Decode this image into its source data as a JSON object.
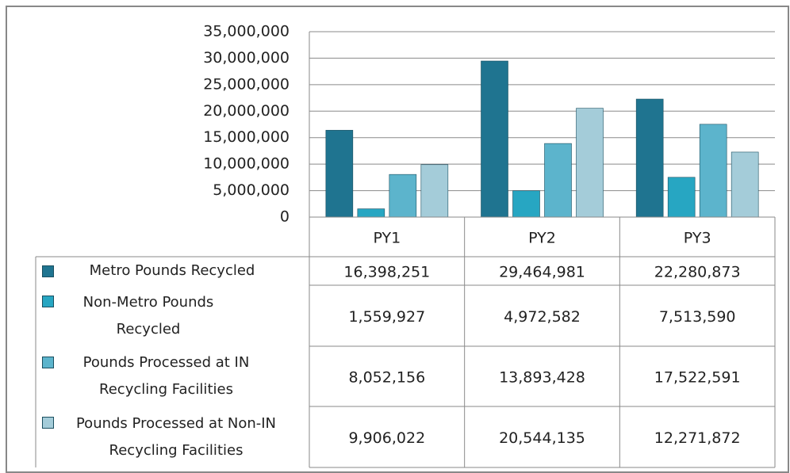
{
  "chart_data": {
    "type": "bar",
    "categories": [
      "PY1",
      "PY2",
      "PY3"
    ],
    "series": [
      {
        "name": "Metro Pounds Recycled",
        "color": "#1f7490",
        "values": [
          16398251,
          29464981,
          22280873
        ],
        "value_labels": [
          "16,398,251",
          "29,464,981",
          "22,280,873"
        ]
      },
      {
        "name": "Non-Metro Pounds Recycled",
        "color": "#27a6c2",
        "values": [
          1559927,
          4972582,
          7513590
        ],
        "value_labels": [
          "1,559,927",
          "4,972,582",
          "7,513,590"
        ]
      },
      {
        "name": "Pounds Processed at IN Recycling Facilities",
        "color": "#5cb4cc",
        "values": [
          8052156,
          13893428,
          17522591
        ],
        "value_labels": [
          "8,052,156",
          "13,893,428",
          "17,522,591"
        ]
      },
      {
        "name": "Pounds Processed at Non-IN Recycling Facilities",
        "color": "#a4ccd9",
        "values": [
          9906022,
          20544135,
          12271872
        ],
        "value_labels": [
          "9,906,022",
          "20,544,135",
          "12,271,872"
        ]
      }
    ],
    "ylim": [
      0,
      35000000
    ],
    "yticks": [
      0,
      {
        "value": 5000000,
        "label": "5,000,000"
      },
      {
        "value": 10000000,
        "label": "10,000,000"
      },
      {
        "value": 15000000,
        "label": "15,000,000"
      },
      {
        "value": 20000000,
        "label": "20,000,000"
      },
      {
        "value": 25000000,
        "label": "25,000,000"
      },
      {
        "value": 30000000,
        "label": "30,000,000"
      },
      {
        "value": 35000000,
        "label": "35,000,000"
      }
    ],
    "grid": true
  }
}
